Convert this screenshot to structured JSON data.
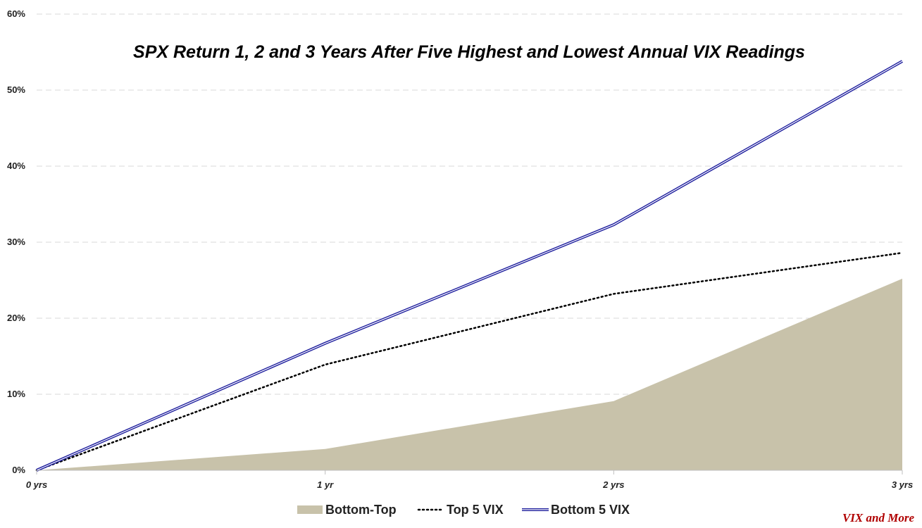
{
  "chart_data": {
    "type": "line",
    "title": "SPX Return 1, 2 and 3 Years After Five Highest and Lowest Annual VIX Readings",
    "categories": [
      "0 yrs",
      "1 yr",
      "2 yrs",
      "3 yrs"
    ],
    "y_ticks": [
      "0%",
      "10%",
      "20%",
      "30%",
      "40%",
      "50%",
      "60%"
    ],
    "ylim": [
      0,
      60
    ],
    "grid": true,
    "legend_position": "bottom",
    "series": [
      {
        "name": "Bottom-Top",
        "kind": "area",
        "values": [
          0,
          2.8,
          9.1,
          25.2
        ],
        "color": "#c8c2aa"
      },
      {
        "name": "Top 5 VIX",
        "kind": "dotted-line",
        "values": [
          0,
          13.9,
          23.2,
          28.6
        ],
        "color": "#000000"
      },
      {
        "name": "Bottom 5 VIX",
        "kind": "double-line",
        "values": [
          0,
          16.7,
          32.3,
          53.8
        ],
        "color": "#1f1f9e"
      }
    ]
  },
  "watermark": "VIX and More"
}
